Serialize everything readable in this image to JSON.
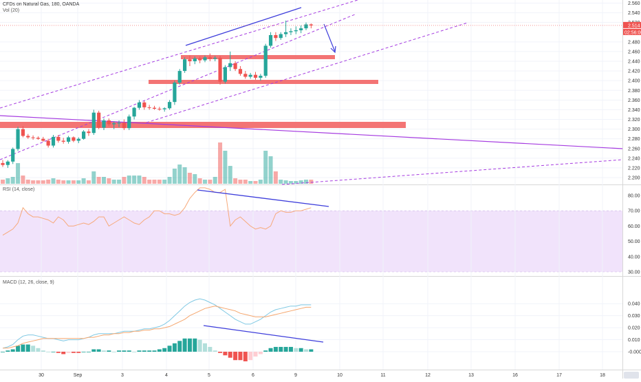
{
  "header": {
    "symbol": "CFDs on Natural Gas, 180, OANDA",
    "volume_label": "Vol (20)",
    "rsi_label": "RSI (14, close)",
    "macd_label": "MACD (12, 26, close, 9)"
  },
  "price_axis": {
    "ticks": [
      "2.560",
      "2.540",
      "2.520",
      "2.480",
      "2.460",
      "2.440",
      "2.420",
      "2.400",
      "2.380",
      "2.360",
      "2.340",
      "2.320",
      "2.300",
      "2.280",
      "2.260",
      "2.240",
      "2.220",
      "2.200"
    ],
    "tick_values": [
      2.56,
      2.54,
      2.52,
      2.48,
      2.46,
      2.44,
      2.42,
      2.4,
      2.38,
      2.36,
      2.34,
      2.32,
      2.3,
      2.28,
      2.26,
      2.24,
      2.22,
      2.2
    ],
    "last_price": "2.514",
    "countdown": "02:56:00"
  },
  "rsi_axis": {
    "ticks": [
      "80.00",
      "70.00",
      "60.00",
      "50.00",
      "40.00",
      "30.00"
    ],
    "tick_values": [
      80,
      70,
      60,
      50,
      40,
      30
    ]
  },
  "macd_axis": {
    "ticks": [
      "0.040",
      "0.030",
      "0.020",
      "0.010",
      "-0.000"
    ],
    "tick_values": [
      0.04,
      0.03,
      0.02,
      0.01,
      0
    ]
  },
  "time_axis": {
    "labels": [
      "30",
      "Sep",
      "3",
      "4",
      "5",
      "6",
      "9",
      "10",
      "11",
      "12",
      "13",
      "16",
      "17",
      "18"
    ]
  },
  "colors": {
    "up": "#26a69a",
    "down": "#ef5350",
    "rsi": "#f7a97a",
    "rsi_band": "#efe0fb",
    "macd": "#7ec8e3",
    "signal": "#f5a66d",
    "trendline": "#3d3ddb",
    "channel": "#a53be0",
    "zone": "#f26d6d"
  },
  "chart_data": {
    "type": "candlestick",
    "candles": [
      {
        "o": 2.23,
        "h": 2.236,
        "l": 2.222,
        "c": 2.226
      },
      {
        "o": 2.226,
        "h": 2.236,
        "l": 2.22,
        "c": 2.233
      },
      {
        "o": 2.233,
        "h": 2.262,
        "l": 2.228,
        "c": 2.259
      },
      {
        "o": 2.259,
        "h": 2.305,
        "l": 2.255,
        "c": 2.3
      },
      {
        "o": 2.3,
        "h": 2.306,
        "l": 2.283,
        "c": 2.286
      },
      {
        "o": 2.286,
        "h": 2.29,
        "l": 2.28,
        "c": 2.283
      },
      {
        "o": 2.283,
        "h": 2.287,
        "l": 2.278,
        "c": 2.282
      },
      {
        "o": 2.282,
        "h": 2.285,
        "l": 2.278,
        "c": 2.28
      },
      {
        "o": 2.28,
        "h": 2.284,
        "l": 2.274,
        "c": 2.276
      },
      {
        "o": 2.276,
        "h": 2.28,
        "l": 2.262,
        "c": 2.266
      },
      {
        "o": 2.266,
        "h": 2.288,
        "l": 2.262,
        "c": 2.284
      },
      {
        "o": 2.284,
        "h": 2.288,
        "l": 2.272,
        "c": 2.276
      },
      {
        "o": 2.276,
        "h": 2.282,
        "l": 2.27,
        "c": 2.274
      },
      {
        "o": 2.274,
        "h": 2.286,
        "l": 2.27,
        "c": 2.283
      },
      {
        "o": 2.283,
        "h": 2.285,
        "l": 2.273,
        "c": 2.276
      },
      {
        "o": 2.276,
        "h": 2.283,
        "l": 2.271,
        "c": 2.28
      },
      {
        "o": 2.28,
        "h": 2.298,
        "l": 2.278,
        "c": 2.295
      },
      {
        "o": 2.295,
        "h": 2.3,
        "l": 2.286,
        "c": 2.292
      },
      {
        "o": 2.292,
        "h": 2.34,
        "l": 2.288,
        "c": 2.334
      },
      {
        "o": 2.334,
        "h": 2.338,
        "l": 2.3,
        "c": 2.303
      },
      {
        "o": 2.303,
        "h": 2.322,
        "l": 2.298,
        "c": 2.318
      },
      {
        "o": 2.318,
        "h": 2.322,
        "l": 2.306,
        "c": 2.31
      },
      {
        "o": 2.31,
        "h": 2.316,
        "l": 2.3,
        "c": 2.312
      },
      {
        "o": 2.312,
        "h": 2.318,
        "l": 2.304,
        "c": 2.313
      },
      {
        "o": 2.313,
        "h": 2.32,
        "l": 2.298,
        "c": 2.302
      },
      {
        "o": 2.302,
        "h": 2.33,
        "l": 2.298,
        "c": 2.326
      },
      {
        "o": 2.326,
        "h": 2.346,
        "l": 2.32,
        "c": 2.344
      },
      {
        "o": 2.344,
        "h": 2.36,
        "l": 2.34,
        "c": 2.355
      },
      {
        "o": 2.355,
        "h": 2.358,
        "l": 2.34,
        "c": 2.345
      },
      {
        "o": 2.345,
        "h": 2.35,
        "l": 2.34,
        "c": 2.344
      },
      {
        "o": 2.344,
        "h": 2.348,
        "l": 2.34,
        "c": 2.342
      },
      {
        "o": 2.342,
        "h": 2.346,
        "l": 2.338,
        "c": 2.341
      },
      {
        "o": 2.341,
        "h": 2.345,
        "l": 2.336,
        "c": 2.343
      },
      {
        "o": 2.343,
        "h": 2.36,
        "l": 2.34,
        "c": 2.356
      },
      {
        "o": 2.356,
        "h": 2.4,
        "l": 2.35,
        "c": 2.396
      },
      {
        "o": 2.396,
        "h": 2.424,
        "l": 2.392,
        "c": 2.42
      },
      {
        "o": 2.42,
        "h": 2.448,
        "l": 2.416,
        "c": 2.444
      },
      {
        "o": 2.444,
        "h": 2.452,
        "l": 2.43,
        "c": 2.44
      },
      {
        "o": 2.44,
        "h": 2.45,
        "l": 2.434,
        "c": 2.446
      },
      {
        "o": 2.446,
        "h": 2.45,
        "l": 2.436,
        "c": 2.442
      },
      {
        "o": 2.442,
        "h": 2.452,
        "l": 2.438,
        "c": 2.448
      },
      {
        "o": 2.448,
        "h": 2.456,
        "l": 2.44,
        "c": 2.445
      },
      {
        "o": 2.445,
        "h": 2.451,
        "l": 2.44,
        "c": 2.447
      },
      {
        "o": 2.447,
        "h": 2.451,
        "l": 2.392,
        "c": 2.398
      },
      {
        "o": 2.398,
        "h": 2.432,
        "l": 2.394,
        "c": 2.428
      },
      {
        "o": 2.428,
        "h": 2.46,
        "l": 2.42,
        "c": 2.436
      },
      {
        "o": 2.436,
        "h": 2.44,
        "l": 2.42,
        "c": 2.424
      },
      {
        "o": 2.424,
        "h": 2.43,
        "l": 2.41,
        "c": 2.414
      },
      {
        "o": 2.414,
        "h": 2.42,
        "l": 2.404,
        "c": 2.408
      },
      {
        "o": 2.408,
        "h": 2.416,
        "l": 2.404,
        "c": 2.412
      },
      {
        "o": 2.412,
        "h": 2.418,
        "l": 2.402,
        "c": 2.406
      },
      {
        "o": 2.406,
        "h": 2.414,
        "l": 2.4,
        "c": 2.41
      },
      {
        "o": 2.41,
        "h": 2.476,
        "l": 2.406,
        "c": 2.472
      },
      {
        "o": 2.472,
        "h": 2.5,
        "l": 2.468,
        "c": 2.494
      },
      {
        "o": 2.494,
        "h": 2.5,
        "l": 2.482,
        "c": 2.488
      },
      {
        "o": 2.488,
        "h": 2.5,
        "l": 2.484,
        "c": 2.496
      },
      {
        "o": 2.496,
        "h": 2.524,
        "l": 2.49,
        "c": 2.5
      },
      {
        "o": 2.5,
        "h": 2.508,
        "l": 2.494,
        "c": 2.502
      },
      {
        "o": 2.502,
        "h": 2.512,
        "l": 2.496,
        "c": 2.504
      },
      {
        "o": 2.504,
        "h": 2.514,
        "l": 2.498,
        "c": 2.508
      },
      {
        "o": 2.508,
        "h": 2.52,
        "l": 2.504,
        "c": 2.516
      },
      {
        "o": 2.516,
        "h": 2.518,
        "l": 2.508,
        "c": 2.514
      }
    ],
    "volume": [
      6,
      8,
      10,
      30,
      12,
      6,
      5,
      5,
      5,
      6,
      8,
      6,
      5,
      5,
      5,
      5,
      8,
      5,
      18,
      10,
      10,
      8,
      6,
      6,
      10,
      12,
      12,
      12,
      10,
      6,
      6,
      6,
      6,
      10,
      22,
      28,
      24,
      16,
      14,
      8,
      6,
      6,
      10,
      60,
      48,
      26,
      8,
      6,
      6,
      4,
      4,
      6,
      48,
      40,
      18,
      6,
      5,
      4,
      4,
      5,
      6,
      6
    ],
    "volume_max": 70,
    "rsi": [
      54,
      56,
      58,
      62,
      72,
      68,
      66,
      66,
      65,
      64,
      62,
      66,
      64,
      60,
      60,
      61,
      62,
      61,
      63,
      66,
      66,
      60,
      62,
      64,
      66,
      64,
      62,
      61,
      64,
      66,
      70,
      70,
      68,
      68,
      67,
      68,
      72,
      78,
      82,
      85,
      85,
      84,
      82,
      82,
      84,
      60,
      64,
      66,
      63,
      60,
      58,
      59,
      58,
      60,
      68,
      70,
      69,
      69,
      70,
      70,
      71,
      72
    ],
    "rsi_ylim": [
      28,
      88
    ],
    "rsi_band": [
      30,
      70
    ],
    "macd": [
      0.003,
      0.004,
      0.006,
      0.01,
      0.013,
      0.014,
      0.014,
      0.013,
      0.012,
      0.011,
      0.011,
      0.01,
      0.009,
      0.01,
      0.01,
      0.01,
      0.011,
      0.012,
      0.014,
      0.015,
      0.015,
      0.015,
      0.015,
      0.016,
      0.017,
      0.017,
      0.017,
      0.018,
      0.019,
      0.019,
      0.02,
      0.021,
      0.023,
      0.026,
      0.03,
      0.034,
      0.038,
      0.041,
      0.043,
      0.044,
      0.043,
      0.041,
      0.039,
      0.036,
      0.033,
      0.03,
      0.027,
      0.025,
      0.023,
      0.023,
      0.025,
      0.027,
      0.03,
      0.033,
      0.035,
      0.036,
      0.037,
      0.038,
      0.038,
      0.039,
      0.039,
      0.039
    ],
    "signal": [
      0.003,
      0.003,
      0.004,
      0.005,
      0.007,
      0.008,
      0.009,
      0.01,
      0.011,
      0.011,
      0.011,
      0.011,
      0.011,
      0.011,
      0.011,
      0.011,
      0.011,
      0.012,
      0.012,
      0.013,
      0.014,
      0.014,
      0.015,
      0.015,
      0.016,
      0.016,
      0.017,
      0.017,
      0.018,
      0.018,
      0.019,
      0.019,
      0.02,
      0.021,
      0.023,
      0.025,
      0.027,
      0.03,
      0.032,
      0.034,
      0.036,
      0.037,
      0.038,
      0.037,
      0.036,
      0.035,
      0.034,
      0.032,
      0.031,
      0.03,
      0.029,
      0.029,
      0.029,
      0.03,
      0.031,
      0.032,
      0.033,
      0.034,
      0.035,
      0.036,
      0.037,
      0.037
    ],
    "macd_hist": [
      0.0,
      0.001,
      0.002,
      0.005,
      0.006,
      0.006,
      0.005,
      0.003,
      0.001,
      0.0,
      0.0,
      -0.001,
      -0.002,
      -0.001,
      -0.001,
      -0.001,
      0.0,
      0.0,
      0.002,
      0.002,
      0.001,
      0.001,
      0.0,
      0.001,
      0.001,
      0.001,
      0.0,
      0.001,
      0.001,
      0.001,
      0.001,
      0.002,
      0.003,
      0.005,
      0.007,
      0.009,
      0.011,
      0.011,
      0.011,
      0.01,
      0.007,
      0.004,
      0.001,
      -0.001,
      -0.003,
      -0.005,
      -0.007,
      -0.007,
      -0.008,
      -0.007,
      -0.004,
      -0.002,
      0.001,
      0.003,
      0.004,
      0.004,
      0.004,
      0.004,
      0.003,
      0.003,
      0.002,
      0.002
    ],
    "macd_ylim": [
      -0.006,
      0.046
    ]
  }
}
